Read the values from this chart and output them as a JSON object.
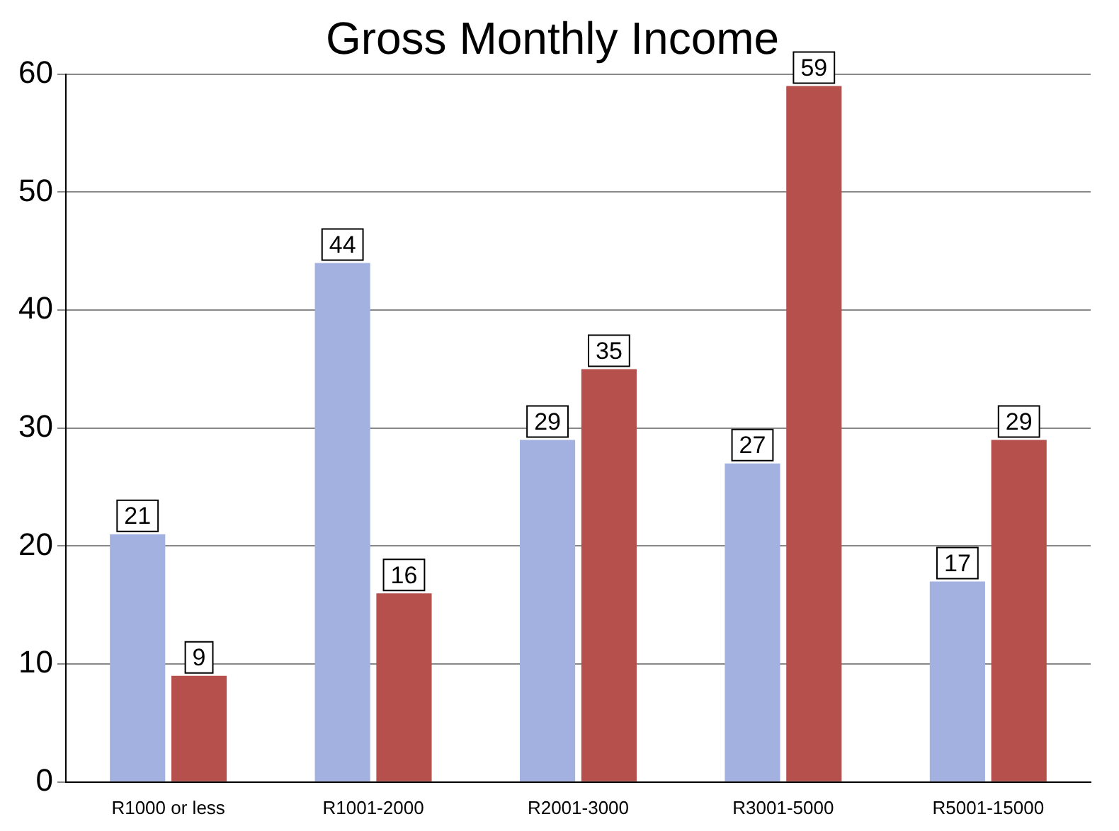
{
  "chart_data": {
    "type": "bar",
    "title": "Gross Monthly Income",
    "categories": [
      "R1000 or less",
      "R1001-2000",
      "R2001-3000",
      "R3001-5000",
      "R5001-15000"
    ],
    "series": [
      {
        "color": "#a3b1e0",
        "values": [
          21,
          44,
          29,
          27,
          17
        ]
      },
      {
        "color": "#b5504c",
        "values": [
          9,
          16,
          35,
          59,
          29
        ]
      }
    ],
    "ylim": [
      0,
      60
    ],
    "yticks": [
      0,
      10,
      20,
      30,
      40,
      50,
      60
    ],
    "grid": "y",
    "legend": false,
    "data_labels": true
  }
}
